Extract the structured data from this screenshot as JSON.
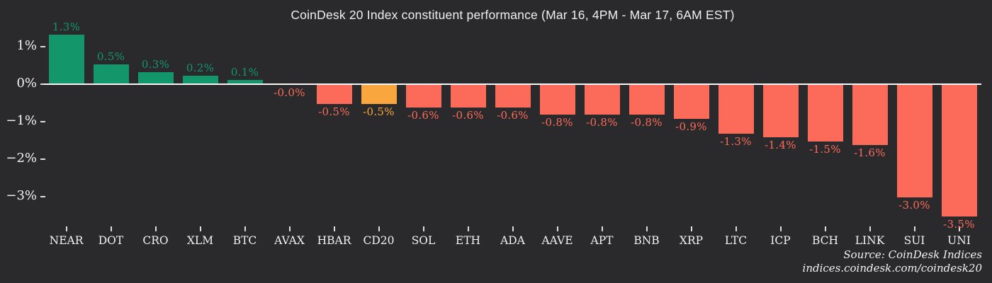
{
  "title": "CoinDesk 20 Index constituent performance (Mar 16, 4PM - Mar 17, 6AM EST)",
  "source": {
    "line1": "Source: CoinDesk Indices",
    "line2": "indices.coindesk.com/coindesk20"
  },
  "colors": {
    "background": "#2a2a2c",
    "positive": "#13966a",
    "negative": "#fc6a5a",
    "highlight": "#f9a63e",
    "axis_text": "#f2f2f2",
    "title_text": "#f0f0f0",
    "baseline": "#f7f7f5"
  },
  "chart_data": {
    "type": "bar",
    "title": "CoinDesk 20 Index constituent performance (Mar 16, 4PM - Mar 17, 6AM EST)",
    "categories": [
      "NEAR",
      "DOT",
      "CRO",
      "XLM",
      "BTC",
      "AVAX",
      "HBAR",
      "CD20",
      "SOL",
      "ETH",
      "ADA",
      "AAVE",
      "APT",
      "BNB",
      "XRP",
      "LTC",
      "ICP",
      "BCH",
      "LINK",
      "SUI",
      "UNI"
    ],
    "values": [
      1.3,
      0.5,
      0.3,
      0.2,
      0.1,
      -0.0,
      -0.5,
      -0.5,
      -0.6,
      -0.6,
      -0.6,
      -0.8,
      -0.8,
      -0.8,
      -0.9,
      -1.3,
      -1.4,
      -1.5,
      -1.6,
      -3.0,
      -3.5
    ],
    "value_labels": [
      "1.3%",
      "0.5%",
      "0.3%",
      "0.2%",
      "0.1%",
      "-0.0%",
      "-0.5%",
      "-0.5%",
      "-0.6%",
      "-0.6%",
      "-0.6%",
      "-0.8%",
      "-0.8%",
      "-0.8%",
      "-0.9%",
      "-1.3%",
      "-1.4%",
      "-1.5%",
      "-1.6%",
      "-3.0%",
      "-3.5%"
    ],
    "bar_roles": [
      "positive",
      "positive",
      "positive",
      "positive",
      "positive",
      "negative",
      "negative",
      "highlight",
      "negative",
      "negative",
      "negative",
      "negative",
      "negative",
      "negative",
      "negative",
      "negative",
      "negative",
      "negative",
      "negative",
      "negative",
      "negative"
    ],
    "yticks": [
      {
        "label": "1%",
        "value": 1
      },
      {
        "label": "0%",
        "value": 0
      },
      {
        "label": "−1%",
        "value": -1
      },
      {
        "label": "−2%",
        "value": -2
      },
      {
        "label": "−3%",
        "value": -3
      }
    ],
    "ylim": [
      -3.8,
      1.6
    ],
    "xlabel": "",
    "ylabel": "",
    "grid": false,
    "legend": null
  }
}
